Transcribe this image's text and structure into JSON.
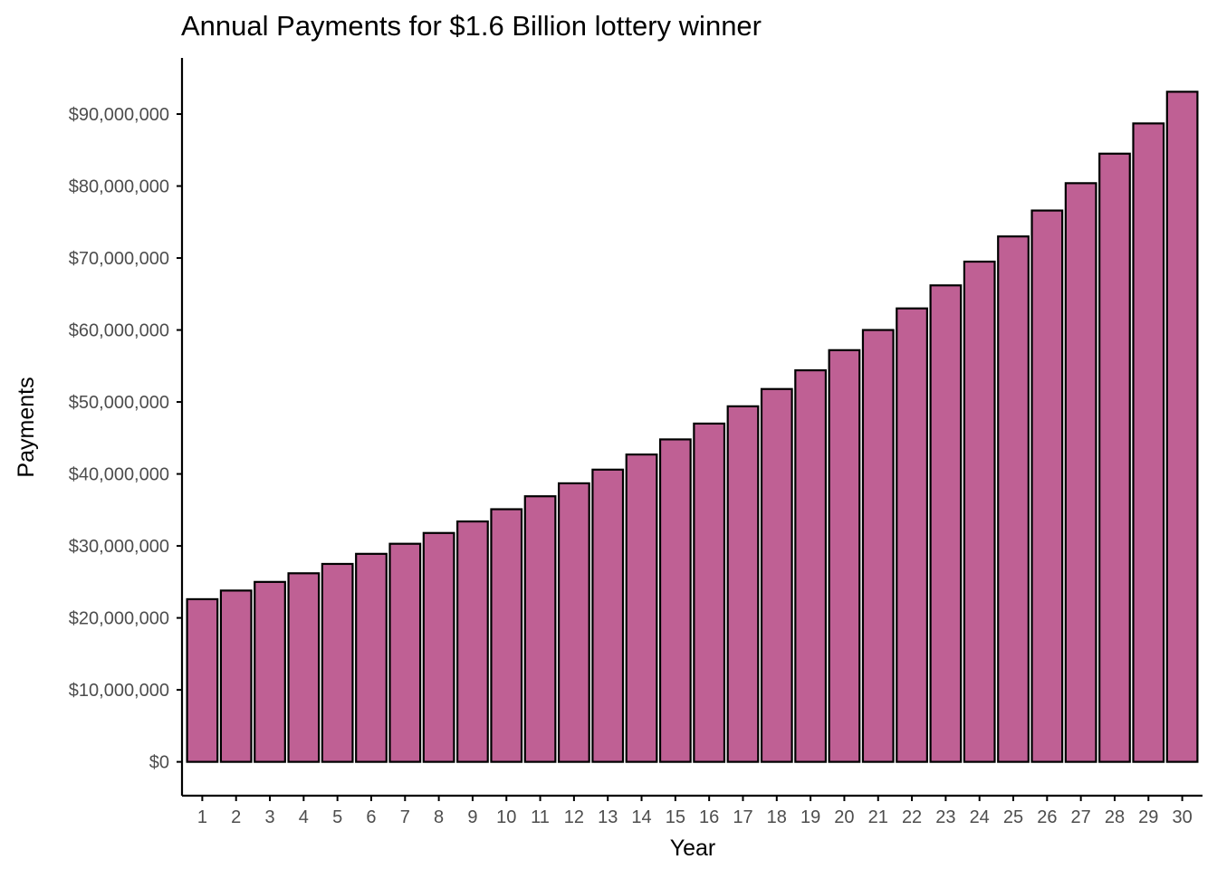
{
  "chart_data": {
    "type": "bar",
    "title": "Annual Payments for $1.6 Billion lottery winner",
    "xlabel": "Year",
    "ylabel": "Payments",
    "categories": [
      "1",
      "2",
      "3",
      "4",
      "5",
      "6",
      "7",
      "8",
      "9",
      "10",
      "11",
      "12",
      "13",
      "14",
      "15",
      "16",
      "17",
      "18",
      "19",
      "20",
      "21",
      "22",
      "23",
      "24",
      "25",
      "26",
      "27",
      "28",
      "29",
      "30"
    ],
    "values": [
      22600000,
      23800000,
      25000000,
      26200000,
      27500000,
      28900000,
      30300000,
      31800000,
      33400000,
      35100000,
      36900000,
      38700000,
      40600000,
      42700000,
      44800000,
      47000000,
      49400000,
      51800000,
      54400000,
      57200000,
      60000000,
      63000000,
      66200000,
      69500000,
      73000000,
      76600000,
      80400000,
      84500000,
      88700000,
      93100000
    ],
    "yticks": [
      0,
      10000000,
      20000000,
      30000000,
      40000000,
      50000000,
      60000000,
      70000000,
      80000000,
      90000000
    ],
    "ytick_labels": [
      "$0",
      "$10,000,000",
      "$20,000,000",
      "$30,000,000",
      "$40,000,000",
      "$50,000,000",
      "$60,000,000",
      "$70,000,000",
      "$80,000,000",
      "$90,000,000"
    ],
    "ylim": [
      -4700000,
      97800000
    ],
    "grid": false,
    "legend": "none",
    "bar_fill": "#bf6094",
    "bar_stroke": "#000000"
  }
}
